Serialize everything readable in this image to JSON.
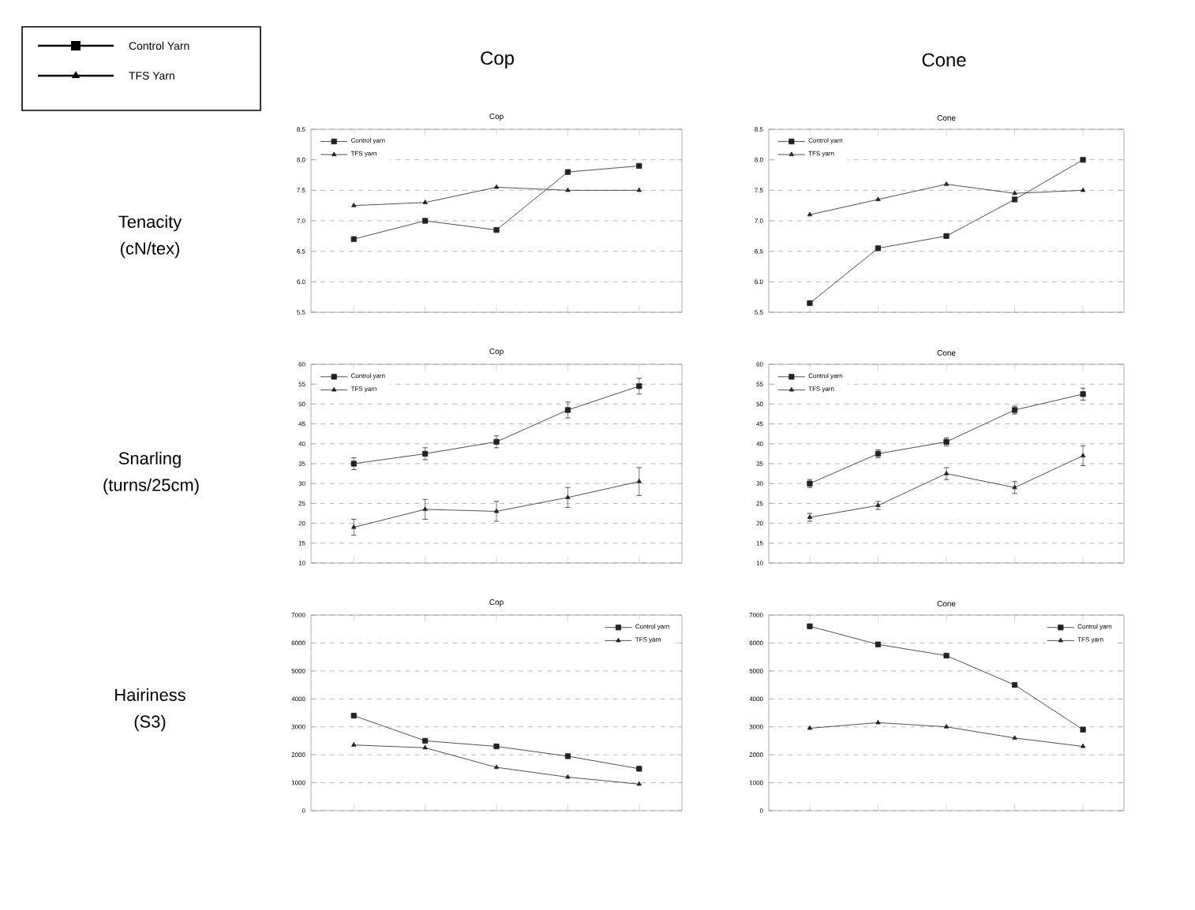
{
  "chart_data": [
    {
      "type": "other",
      "annotations": [
        "Cop",
        "Cone",
        "Tenacity (cN/tex)",
        "Snarling (turns/25cm)",
        "Hairiness (S3)",
        "Control Yarn",
        "TFS Yarn"
      ]
    },
    {
      "type": "line",
      "title": "Cop",
      "categories": [
        null,
        null,
        null,
        null,
        null
      ],
      "ylim": [
        5.5,
        8.5
      ],
      "yticks": [
        5.5,
        {
          "value": 6,
          "label": "6.0"
        },
        6.5,
        {
          "value": 7,
          "label": "7.0"
        },
        7.5,
        {
          "value": 8,
          "label": "8.0"
        },
        8.5
      ],
      "grid": "y",
      "legend": "top left",
      "line_style": "solid",
      "series": [
        {
          "name": "Control yarn",
          "color": "#222222",
          "marker": "square",
          "values": [
            6.7,
            7.0,
            6.85,
            7.8,
            7.9
          ]
        },
        {
          "name": "TFS yarn",
          "color": "#222222",
          "marker": "triangle",
          "values": [
            7.25,
            7.3,
            7.55,
            7.5,
            7.5
          ]
        }
      ]
    },
    {
      "type": "line",
      "title": "Cone",
      "categories": [
        null,
        null,
        null,
        null,
        null
      ],
      "ylim": [
        5.5,
        8.5
      ],
      "yticks": [
        5.5,
        {
          "value": 6,
          "label": "6.0"
        },
        6.5,
        {
          "value": 7,
          "label": "7.0"
        },
        7.5,
        {
          "value": 8,
          "label": "8.0"
        },
        8.5
      ],
      "grid": "y",
      "legend": "top left",
      "line_style": "solid",
      "series": [
        {
          "name": "Control yarn",
          "color": "#222222",
          "marker": "square",
          "values": [
            5.65,
            6.55,
            6.75,
            7.35,
            8.0
          ]
        },
        {
          "name": "TFS yarn",
          "color": "#222222",
          "marker": "triangle",
          "values": [
            7.1,
            7.35,
            7.6,
            7.45,
            7.5
          ]
        }
      ]
    },
    {
      "type": "line",
      "title": "Cop",
      "categories": [
        null,
        null,
        null,
        null,
        null
      ],
      "ylim": [
        10,
        60
      ],
      "yticks": [
        10,
        15,
        20,
        25,
        30,
        35,
        40,
        45,
        50,
        55,
        60
      ],
      "grid": "y",
      "legend": "top left",
      "line_style": "solid",
      "series": [
        {
          "name": "Control yarn",
          "color": "#222222",
          "marker": "square",
          "values": [
            35,
            37.5,
            40.5,
            48.5,
            54.5
          ],
          "errors": [
            1.5,
            1.5,
            1.5,
            2,
            2
          ]
        },
        {
          "name": "TFS yarn",
          "color": "#222222",
          "marker": "triangle",
          "values": [
            19,
            23.5,
            23,
            26.5,
            30.5
          ],
          "errors": [
            2,
            2.5,
            2.5,
            2.5,
            3.5
          ]
        }
      ]
    },
    {
      "type": "line",
      "title": "Cone",
      "categories": [
        null,
        null,
        null,
        null,
        null
      ],
      "ylim": [
        10,
        60
      ],
      "yticks": [
        10,
        15,
        20,
        25,
        30,
        35,
        40,
        45,
        50,
        55,
        60
      ],
      "grid": "y",
      "legend": "top left",
      "line_style": "solid",
      "series": [
        {
          "name": "Control yarn",
          "color": "#222222",
          "marker": "square",
          "values": [
            30,
            37.5,
            40.5,
            48.5,
            52.5
          ],
          "errors": [
            1,
            1,
            1,
            1,
            1.5
          ]
        },
        {
          "name": "TFS yarn",
          "color": "#222222",
          "marker": "triangle",
          "values": [
            21.5,
            24.5,
            32.5,
            29,
            37
          ],
          "errors": [
            1,
            1,
            1.5,
            1.5,
            2.5
          ]
        }
      ]
    },
    {
      "type": "line",
      "title": "Cop",
      "categories": [
        null,
        null,
        null,
        null,
        null
      ],
      "ylim": [
        0,
        7000
      ],
      "yticks": [
        0,
        1000,
        2000,
        3000,
        4000,
        5000,
        6000,
        7000
      ],
      "grid": "y",
      "legend": "top right",
      "line_style": "solid",
      "series": [
        {
          "name": "Control yarn",
          "color": "#222222",
          "marker": "square",
          "values": [
            3400,
            2500,
            2300,
            1950,
            1500
          ]
        },
        {
          "name": "TFS yarn",
          "color": "#222222",
          "marker": "triangle",
          "values": [
            2350,
            2250,
            1550,
            1200,
            950
          ]
        }
      ]
    },
    {
      "type": "line",
      "title": "Cone",
      "categories": [
        null,
        null,
        null,
        null,
        null
      ],
      "ylim": [
        0,
        7000
      ],
      "yticks": [
        0,
        1000,
        2000,
        3000,
        4000,
        5000,
        6000,
        7000
      ],
      "grid": "y",
      "legend": "top right",
      "line_style": "solid",
      "series": [
        {
          "name": "Control yarn",
          "color": "#222222",
          "marker": "square",
          "values": [
            6600,
            5950,
            5550,
            4500,
            2900
          ]
        },
        {
          "name": "TFS yarn",
          "color": "#222222",
          "marker": "triangle",
          "values": [
            2950,
            3150,
            3000,
            2600,
            2300
          ]
        }
      ]
    }
  ]
}
